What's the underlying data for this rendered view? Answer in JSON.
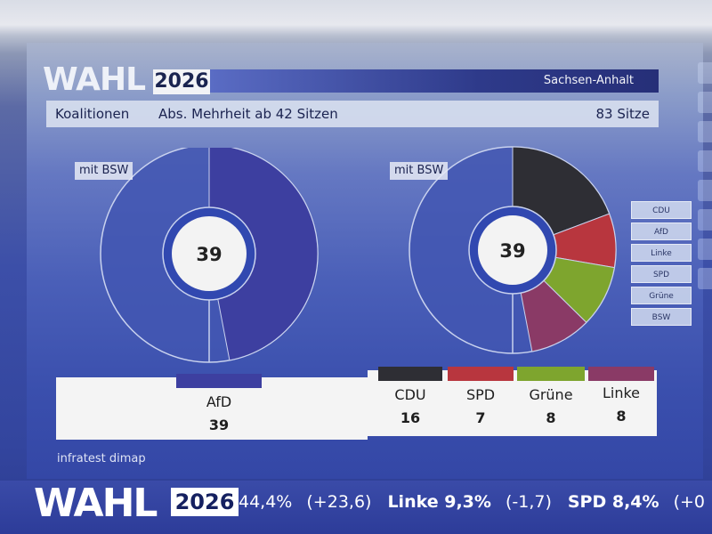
{
  "header": {
    "logo": "WAHL",
    "year": "2026",
    "region": "Sachsen-Anhalt"
  },
  "subheader": {
    "title": "Koalitionen",
    "majority": "Abs. Mehrheit ab 42 Sitzen",
    "total_seats": "83 Sitze"
  },
  "colors": {
    "AfD": "#3d3fa0",
    "CDU": "#2e2e34",
    "SPD": "#b8363e",
    "Grüne": "#7ea52e",
    "Linke": "#8a3a66",
    "empty": "#4256b2"
  },
  "chart_data": [
    {
      "type": "pie",
      "tag": "mit BSW",
      "center_label": "39",
      "total": 83,
      "slices": [
        {
          "name": "AfD",
          "value": 39
        }
      ]
    },
    {
      "type": "pie",
      "tag": "mit BSW",
      "center_label": "39",
      "total": 83,
      "slices": [
        {
          "name": "CDU",
          "value": 16
        },
        {
          "name": "SPD",
          "value": 7
        },
        {
          "name": "Grüne",
          "value": 8
        },
        {
          "name": "Linke",
          "value": 8
        }
      ]
    }
  ],
  "legend": [
    "CDU",
    "AfD",
    "Linke",
    "SPD",
    "Grüne",
    "BSW"
  ],
  "results": [
    {
      "party": "AfD",
      "seats": "39"
    },
    {
      "party": "CDU",
      "seats": "16"
    },
    {
      "party": "SPD",
      "seats": "7"
    },
    {
      "party": "Grüne",
      "seats": "8"
    },
    {
      "party": "Linke",
      "seats": "8"
    }
  ],
  "source": "infratest dimap",
  "ticker": {
    "logo": "WAHL",
    "year": "2026",
    "items": [
      {
        "party": "",
        "value": "44,4%",
        "change": "(+23,6)"
      },
      {
        "party": "Linke",
        "value": "9,3%",
        "change": "(-1,7)"
      },
      {
        "party": "SPD",
        "value": "8,4%",
        "change": "(+0"
      }
    ]
  }
}
